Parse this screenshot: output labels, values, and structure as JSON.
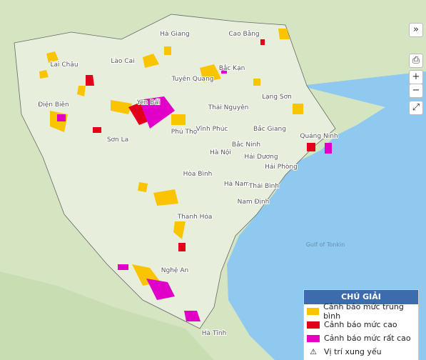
{
  "map": {
    "labels": [
      "Hà Giang",
      "Cao Bằng",
      "Lai Châu",
      "Lào Cai",
      "Tuyên Quang",
      "Bắc Kạn",
      "Lạng Sơn",
      "Điện Biên",
      "Yên Bái",
      "Thái Nguyên",
      "Sơn La",
      "Phú Thọ",
      "Vĩnh Phúc",
      "Bắc Giang",
      "Quảng Ninh",
      "Bắc Ninh",
      "Hà Nội",
      "Hải Dương",
      "Hải Phòng",
      "Hòa Bình",
      "Hà Nam",
      "Thái Bình",
      "Nam Định",
      "Thanh Hóa",
      "Nghệ An",
      "Hà Tĩnh"
    ],
    "sea_label": "Gulf of\nTonkin"
  },
  "controls": {
    "collapse": "»",
    "zoom_in": "+",
    "zoom_out": "−"
  },
  "legend": {
    "title": "CHÚ GIẢI",
    "items": [
      "Cảnh báo mức trung bình",
      "Cảnh báo mức cao",
      "Cảnh báo mức rất cao",
      "Vị trí xung yếu"
    ]
  }
}
